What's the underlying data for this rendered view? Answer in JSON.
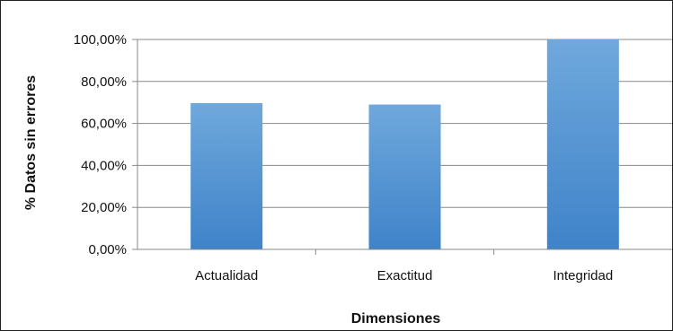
{
  "chart_data": {
    "type": "bar",
    "title": "",
    "xlabel": "Dimensiones",
    "ylabel": "% Datos sin errores",
    "categories": [
      "Actualidad",
      "Exactitud",
      "Integridad"
    ],
    "values": [
      69.7,
      69.0,
      100.0
    ],
    "ylim": [
      0,
      100
    ],
    "yticks": [
      0,
      20,
      40,
      60,
      80,
      100
    ],
    "ytick_labels": [
      "0,00%",
      "20,00%",
      "40,00%",
      "60,00%",
      "80,00%",
      "100,00%"
    ],
    "grid": true,
    "legend": "none",
    "bar_color_top": "#6fa8dc",
    "bar_color_bottom": "#3f83c9",
    "grid_color": "#888888"
  }
}
